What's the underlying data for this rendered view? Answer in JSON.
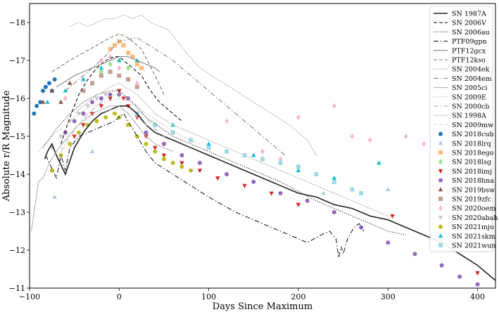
{
  "chart_data": {
    "type": "scatter",
    "title": "",
    "xlabel": "Days Since Maximum",
    "ylabel": "Absolute r/R Magnitude",
    "xlim": [
      -100,
      420
    ],
    "ylim": [
      -11,
      -18.5
    ],
    "xticks": [
      -100,
      0,
      100,
      200,
      300,
      400
    ],
    "xtick_labels": [
      "−100",
      "0",
      "100",
      "200",
      "300",
      "400"
    ],
    "yticks": [
      -11,
      -12,
      -13,
      -14,
      -15,
      -16,
      -17,
      -18
    ],
    "ytick_labels": [
      "−11",
      "−12",
      "−13",
      "−14",
      "−15",
      "−16",
      "−17",
      "−18"
    ],
    "grid": false,
    "legend_position": "top-right",
    "series": [
      {
        "name": "SN 1987A",
        "kind": "line",
        "style": "solid",
        "width": 1.6,
        "color": "#222222",
        "x": [
          -83,
          -80,
          -75,
          -70,
          -60,
          -50,
          -40,
          -30,
          -20,
          -10,
          0,
          10,
          20,
          30,
          40,
          50,
          60,
          70,
          80,
          100,
          120,
          140,
          160,
          180,
          200,
          220,
          240,
          260,
          280,
          300,
          320,
          340,
          360,
          380,
          400,
          420
        ],
        "y": [
          -14.4,
          -14.6,
          -14.8,
          -14.5,
          -14.0,
          -14.7,
          -15.1,
          -15.4,
          -15.6,
          -15.7,
          -15.8,
          -15.8,
          -15.6,
          -15.3,
          -15.1,
          -15.0,
          -14.9,
          -14.8,
          -14.7,
          -14.5,
          -14.3,
          -14.1,
          -13.9,
          -13.7,
          -13.5,
          -13.4,
          -13.2,
          -13.1,
          -12.9,
          -12.8,
          -12.6,
          -12.4,
          -12.2,
          -11.9,
          -11.6,
          -11.2
        ]
      },
      {
        "name": "SN 2006V",
        "kind": "line",
        "style": "dashed",
        "width": 1.2,
        "color": "#222222",
        "x": [
          -65,
          -55,
          -45,
          -35,
          -25,
          -15,
          -5,
          0,
          5,
          15,
          25,
          35,
          45,
          55,
          65,
          70
        ],
        "y": [
          -14.8,
          -15.5,
          -16.1,
          -16.5,
          -16.8,
          -17.0,
          -17.1,
          -17.1,
          -17.0,
          -16.8,
          -16.6,
          -16.2,
          -15.9,
          -15.7,
          -15.5,
          -15.4
        ]
      },
      {
        "name": "SN 2006au",
        "kind": "line",
        "style": "dotted",
        "width": 1.1,
        "color": "#222222",
        "x": [
          -85,
          -70,
          -55,
          -40,
          -25,
          -10,
          0,
          10,
          30,
          60,
          100,
          140,
          180,
          220,
          260,
          300,
          320
        ],
        "y": [
          -14.7,
          -15.2,
          -15.6,
          -15.9,
          -16.1,
          -16.2,
          -16.2,
          -16.0,
          -15.5,
          -15.0,
          -14.6,
          -14.2,
          -13.8,
          -13.3,
          -12.9,
          -12.5,
          -12.4
        ]
      },
      {
        "name": "PTF09gpn",
        "kind": "line",
        "style": "dashdot",
        "width": 1.1,
        "color": "#222222",
        "x": [
          -82,
          -78,
          -70,
          -65,
          -60,
          -55,
          -45,
          -35,
          -25,
          -15,
          -5,
          0,
          5,
          10,
          15,
          20,
          25,
          30,
          40,
          60,
          80,
          100,
          130,
          160,
          190,
          210,
          225,
          235,
          242,
          245,
          248,
          250,
          255,
          262,
          268,
          273
        ],
        "y": [
          -14.5,
          -14.3,
          -13.9,
          -14.5,
          -14.1,
          -14.7,
          -15.0,
          -15.1,
          -15.2,
          -15.3,
          -15.4,
          -15.5,
          -15.6,
          -15.4,
          -15.2,
          -15.0,
          -14.8,
          -14.6,
          -14.3,
          -14.0,
          -13.7,
          -13.4,
          -13.0,
          -12.7,
          -12.4,
          -12.2,
          -12.4,
          -12.5,
          -12.3,
          -11.8,
          -12.1,
          -11.9,
          -12.3,
          -12.6,
          -12.7,
          -12.5
        ]
      },
      {
        "name": "PTF12gcx",
        "kind": "line",
        "style": "solid",
        "width": 1.0,
        "color": "#777777",
        "x": [
          -70,
          -50,
          -30,
          -10,
          0,
          10,
          20,
          30,
          40,
          45
        ],
        "y": [
          -16.3,
          -16.6,
          -16.8,
          -17.0,
          -17.1,
          -17.1,
          -17.0,
          -16.9,
          -16.8,
          -16.7
        ]
      },
      {
        "name": "PTF12kso",
        "kind": "line",
        "style": "dashed",
        "width": 1.1,
        "color": "#777777",
        "x": [
          -75,
          -55,
          -40,
          -25,
          -10,
          0,
          10,
          25,
          40,
          50
        ],
        "y": [
          -16.7,
          -17.0,
          -17.2,
          -17.4,
          -17.6,
          -17.7,
          -17.6,
          -17.3,
          -16.6,
          -16.1
        ]
      },
      {
        "name": "SN 2004ek",
        "kind": "line",
        "style": "dotted",
        "width": 1.0,
        "color": "#777777",
        "x": [
          -55,
          -45,
          -35,
          -25,
          -15,
          -5,
          5,
          15,
          25,
          35,
          45,
          55,
          65,
          75,
          90,
          110,
          130,
          150,
          170,
          190,
          210,
          220
        ],
        "y": [
          -17.9,
          -18.0,
          -17.9,
          -18.0,
          -18.1,
          -18.1,
          -18.2,
          -18.1,
          -18.2,
          -18.0,
          -17.9,
          -17.8,
          -17.5,
          -17.2,
          -16.8,
          -16.5,
          -16.2,
          -15.9,
          -15.6,
          -15.3,
          -14.9,
          -14.5
        ]
      },
      {
        "name": "SN 2004em",
        "kind": "line",
        "style": "dashdot",
        "width": 1.0,
        "color": "#777777",
        "x": [
          -60,
          -40,
          -20,
          0,
          20,
          40,
          60,
          80,
          100,
          120,
          140,
          160,
          180,
          185
        ],
        "y": [
          -16.2,
          -16.6,
          -17.0,
          -17.5,
          -17.6,
          -17.3,
          -17.0,
          -16.6,
          -16.2,
          -15.8,
          -15.4,
          -15.0,
          -14.6,
          -14.5
        ]
      },
      {
        "name": "SN 2005ci",
        "kind": "line",
        "style": "solid",
        "width": 1.0,
        "color": "#aaaaaa",
        "x": [
          -98,
          -90,
          -85,
          -78,
          -70,
          -60,
          -50,
          -40,
          -30,
          -20,
          -10,
          0,
          10,
          20,
          30,
          40,
          50,
          60
        ],
        "y": [
          -12.5,
          -13.8,
          -13.9,
          -14.3,
          -14.6,
          -14.9,
          -15.2,
          -15.4,
          -15.6,
          -15.7,
          -15.8,
          -15.8,
          -15.6,
          -15.3,
          -15.0,
          -14.8,
          -14.7,
          -14.6
        ]
      },
      {
        "name": "SN 2009E",
        "kind": "line",
        "style": "dotted",
        "width": 1.0,
        "color": "#aaaaaa",
        "x": [
          -90,
          -75,
          -60,
          -45,
          -30,
          -15,
          0,
          15,
          30,
          50,
          70,
          90
        ],
        "y": [
          -14.6,
          -15.0,
          -15.3,
          -15.6,
          -15.8,
          -15.9,
          -16.0,
          -15.9,
          -15.6,
          -15.3,
          -15.0,
          -14.8
        ]
      },
      {
        "name": "SN 2000cb",
        "kind": "line",
        "style": "dashdot",
        "width": 1.0,
        "color": "#aaaaaa",
        "x": [
          -65,
          -55,
          -45,
          -35,
          -25,
          -15,
          -5,
          0,
          10,
          20,
          30,
          40,
          55
        ],
        "y": [
          -14.6,
          -15.0,
          -15.3,
          -15.6,
          -15.8,
          -16.0,
          -16.1,
          -16.1,
          -16.0,
          -15.8,
          -15.5,
          -15.2,
          -14.9
        ]
      },
      {
        "name": "SN 1998A",
        "kind": "line",
        "style": "solid",
        "width": 1.0,
        "color": "#cccccc",
        "x": [
          -50,
          -30,
          -10,
          0,
          20,
          40,
          60,
          90,
          120,
          160,
          200,
          240,
          280,
          300
        ],
        "y": [
          -15.6,
          -16.0,
          -16.3,
          -16.4,
          -16.1,
          -15.6,
          -15.3,
          -15.0,
          -14.7,
          -14.3,
          -13.9,
          -13.5,
          -13.1,
          -12.9
        ]
      },
      {
        "name": "SN 2009mw",
        "kind": "line",
        "style": "dashed",
        "width": 1.0,
        "color": "#d8d8d8",
        "x": [
          -40,
          -25,
          -10,
          0,
          15,
          30,
          45
        ],
        "y": [
          -15.4,
          -15.6,
          -15.7,
          -15.7,
          -15.6,
          -15.3,
          -15.1
        ]
      },
      {
        "name": "SN 2018cub",
        "kind": "marker",
        "marker": "circle",
        "color": "#1f77b4",
        "x": [
          -95,
          -92,
          -88,
          -85,
          -82,
          -78,
          -75,
          -72
        ],
        "y": [
          -15.6,
          -15.8,
          -15.9,
          -16.2,
          -16.3,
          -16.4,
          -16.2,
          -16.5
        ]
      },
      {
        "name": "SN 2018lrq",
        "kind": "marker",
        "marker": "triangle-up",
        "color": "#aec7e8",
        "x": [
          -72,
          -30,
          300,
          382,
          228
        ],
        "y": [
          -13.4,
          -14.6,
          -13.6,
          -13.3,
          -13.5
        ]
      },
      {
        "name": "SN 2018ego",
        "kind": "marker",
        "marker": "square",
        "color": "#ffbb78",
        "x": [
          -10,
          -5,
          0,
          5,
          10,
          15,
          20,
          25
        ],
        "y": [
          -17.3,
          -17.4,
          -17.5,
          -17.4,
          -17.2,
          -17.1,
          -16.9,
          -16.8
        ]
      },
      {
        "name": "SN 2018lsg",
        "kind": "marker",
        "marker": "diamond",
        "color": "#98df8a",
        "x": [
          -20,
          -10,
          0,
          10
        ],
        "y": [
          -16.7,
          -16.9,
          -17.0,
          -16.8
        ]
      },
      {
        "name": "SN 2018imj",
        "kind": "marker",
        "marker": "triangle-down",
        "color": "#d62728",
        "x": [
          -50,
          -40,
          -30,
          -20,
          -10,
          0,
          5,
          10,
          20,
          30,
          40,
          50,
          70,
          90,
          110,
          140,
          170,
          200,
          305,
          400
        ],
        "y": [
          -15.0,
          -15.3,
          -15.6,
          -15.8,
          -16.0,
          -16.2,
          -16.0,
          -15.8,
          -15.5,
          -15.0,
          -14.7,
          -14.5,
          -14.3,
          -14.1,
          -13.9,
          -13.7,
          -13.5,
          -13.2,
          -12.9,
          -11.4
        ]
      },
      {
        "name": "SN 2018hna",
        "kind": "marker",
        "marker": "circle",
        "color": "#9467bd",
        "x": [
          -60,
          -50,
          -40,
          -30,
          -20,
          -10,
          0,
          10,
          30,
          50,
          70,
          90,
          120,
          150,
          180,
          210,
          240,
          270,
          300,
          330,
          360,
          380,
          400
        ],
        "y": [
          -15.1,
          -15.4,
          -15.6,
          -15.9,
          -16.0,
          -16.1,
          -16.1,
          -16.0,
          -15.1,
          -14.8,
          -14.5,
          -14.3,
          -14.0,
          -13.8,
          -13.5,
          -13.3,
          -13.0,
          -12.6,
          -12.2,
          -11.9,
          -11.6,
          -11.3,
          -11.1
        ]
      },
      {
        "name": "SN 2019bsw",
        "kind": "marker",
        "marker": "triangle-up",
        "color": "#8c564b",
        "x": [
          -85,
          -75,
          -65,
          -55
        ],
        "y": [
          -15.9,
          -16.2,
          -15.9,
          -16.4
        ]
      },
      {
        "name": "SN 2019zfc",
        "kind": "marker",
        "marker": "square",
        "color": "#c49c94",
        "x": [
          -40,
          -30,
          -20,
          -10,
          0,
          10,
          20
        ],
        "y": [
          -16.2,
          -16.4,
          -16.6,
          -16.7,
          -16.6,
          -16.5,
          -16.3
        ]
      },
      {
        "name": "SN 2020oem",
        "kind": "marker",
        "marker": "diamond",
        "color": "#f7b6d2",
        "x": [
          -60,
          -40,
          -20,
          -10,
          0,
          20,
          120,
          160,
          180,
          200,
          240,
          260,
          280,
          320,
          340
        ],
        "y": [
          -16.0,
          -16.5,
          -17.0,
          -17.1,
          -16.8,
          -16.4,
          -15.4,
          -14.6,
          -14.4,
          -15.5,
          -15.8,
          -15.0,
          -14.9,
          -15.0,
          -14.8
        ]
      },
      {
        "name": "SN 2020abah",
        "kind": "marker",
        "marker": "triangle-down",
        "color": "#c7c7c7",
        "x": [
          -75,
          -65,
          -55,
          -45,
          -35,
          -25,
          -15
        ],
        "y": [
          -14.7,
          -15.0,
          -15.4,
          -15.6,
          -15.8,
          -16.0,
          -16.1
        ]
      },
      {
        "name": "SN 2021mju",
        "kind": "marker",
        "marker": "circle",
        "color": "#bcbd22",
        "x": [
          -75,
          -65,
          -55,
          -45,
          -35,
          -25,
          -15,
          -5,
          0,
          10,
          20,
          30,
          40,
          50,
          60,
          70,
          80
        ],
        "y": [
          -14.1,
          -14.5,
          -14.8,
          -15.1,
          -15.3,
          -15.4,
          -15.5,
          -15.6,
          -15.5,
          -15.3,
          -15.0,
          -14.8,
          -14.6,
          -14.4,
          -14.3,
          -14.2,
          -14.1
        ]
      },
      {
        "name": "SN 2021skm",
        "kind": "marker",
        "marker": "triangle-up",
        "color": "#17becf",
        "x": [
          -80,
          -60,
          -40,
          -20,
          0,
          20,
          60,
          100,
          150,
          200,
          240,
          270,
          290
        ],
        "y": [
          -15.9,
          -16.2,
          -16.5,
          -16.8,
          -17.0,
          -17.0,
          -15.3,
          -14.8,
          -14.5,
          -14.1,
          -13.9,
          -13.5,
          -14.3
        ]
      },
      {
        "name": "SN 2021wun",
        "kind": "marker",
        "marker": "square",
        "color": "#9edae5",
        "x": [
          20,
          40,
          60,
          80,
          100,
          120,
          140,
          160,
          180,
          200,
          220,
          240,
          260,
          270
        ],
        "y": [
          -15.6,
          -15.3,
          -15.1,
          -14.9,
          -14.7,
          -14.6,
          -14.5,
          -14.4,
          -14.3,
          -14.2,
          -14.0,
          -13.8,
          -13.6,
          -13.5
        ]
      }
    ]
  }
}
